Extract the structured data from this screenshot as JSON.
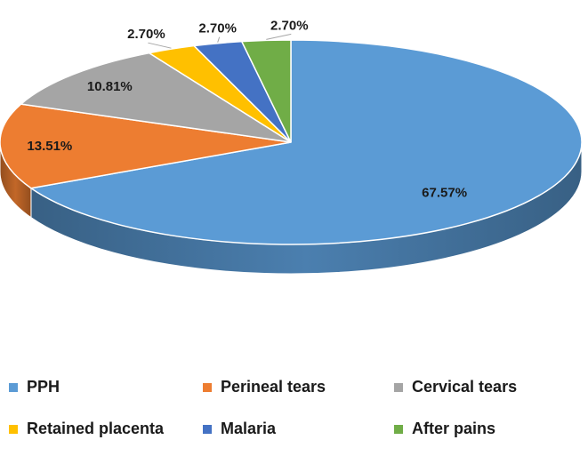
{
  "chart_data": {
    "type": "pie",
    "title": "",
    "slices": [
      {
        "name": "PPH",
        "value": 67.57,
        "label": "67.57%",
        "color": "#5b9bd5"
      },
      {
        "name": "Perineal tears",
        "value": 13.51,
        "label": "13.51%",
        "color": "#ed7d31"
      },
      {
        "name": "Cervical tears",
        "value": 10.81,
        "label": "10.81%",
        "color": "#a5a5a5"
      },
      {
        "name": "Retained placenta",
        "value": 2.7,
        "label": "2.70%",
        "color": "#ffc000"
      },
      {
        "name": "Malaria",
        "value": 2.7,
        "label": "2.70%",
        "color": "#4472c4"
      },
      {
        "name": "After pains",
        "value": 2.7,
        "label": "2.70%",
        "color": "#70ad47"
      }
    ],
    "legend_position": "bottom"
  }
}
